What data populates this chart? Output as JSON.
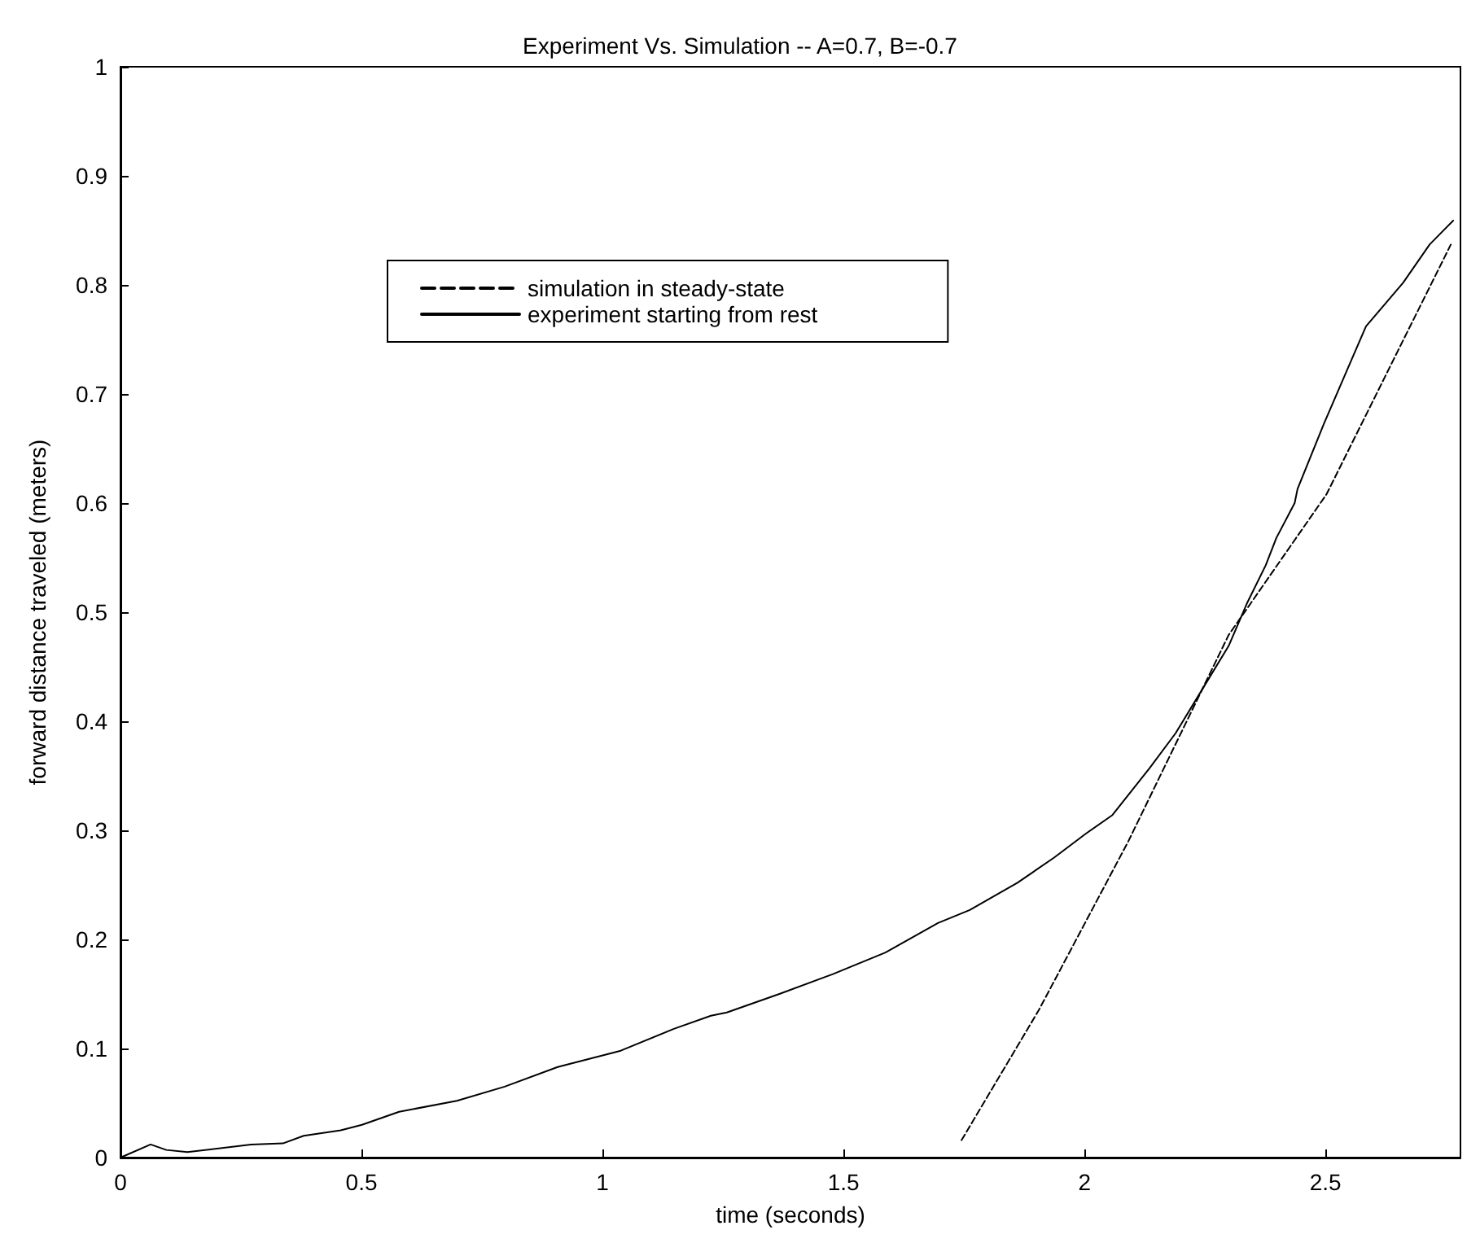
{
  "chart_data": {
    "type": "line",
    "title": "Experiment Vs. Simulation -- A=0.7, B=-0.7",
    "xlabel": "time (seconds)",
    "ylabel": "forward distance traveled (meters)",
    "xlim": [
      0,
      2.78
    ],
    "xticks": [
      0,
      0.5,
      1,
      1.5,
      2,
      2.5
    ],
    "ylim": [
      0,
      1
    ],
    "yticks": [
      0,
      0.1,
      0.2,
      0.3,
      0.4,
      0.5,
      0.6,
      0.7,
      0.8,
      0.9,
      1
    ],
    "grid": false,
    "legend": "top",
    "marker": "none",
    "series": [
      {
        "name": "simulation in steady-state",
        "color": "#000000",
        "line_style": "dashed",
        "x": [
          1.745,
          1.905,
          2.091,
          2.299,
          2.502,
          2.76
        ],
        "values": [
          0.016,
          0.135,
          0.29,
          0.479,
          0.608,
          0.837
        ]
      },
      {
        "name": "experiment starting from rest",
        "color": "#000000",
        "line_style": "solid",
        "x": [
          0,
          0.0625,
          0.095,
          0.139,
          0.271,
          0.337,
          0.38,
          0.457,
          0.501,
          0.578,
          0.698,
          0.797,
          0.907,
          1.038,
          1.148,
          1.225,
          1.258,
          1.367,
          1.477,
          1.587,
          1.696,
          1.762,
          1.861,
          1.937,
          2.003,
          2.058,
          2.135,
          2.189,
          2.244,
          2.299,
          2.338,
          2.376,
          2.398,
          2.436,
          2.442,
          2.497,
          2.54,
          2.584,
          2.661,
          2.716,
          2.765
        ],
        "values": [
          0,
          0.012,
          0.007,
          0.005,
          0.012,
          0.013,
          0.02,
          0.025,
          0.03,
          0.042,
          0.052,
          0.065,
          0.083,
          0.098,
          0.118,
          0.13,
          0.133,
          0.15,
          0.168,
          0.188,
          0.215,
          0.227,
          0.252,
          0.275,
          0.297,
          0.314,
          0.357,
          0.389,
          0.429,
          0.469,
          0.509,
          0.543,
          0.568,
          0.6,
          0.613,
          0.673,
          0.717,
          0.762,
          0.802,
          0.837,
          0.859
        ]
      }
    ]
  }
}
